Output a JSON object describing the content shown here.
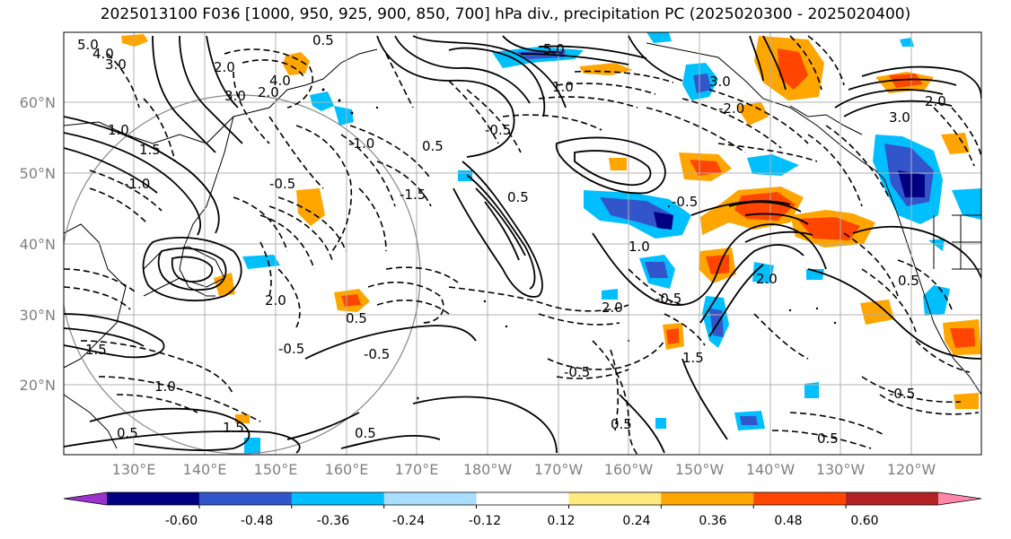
{
  "title": "2025013100 F036 [1000, 950, 925, 900, 850, 700] hPa div., precipitation PC (2025020300 - 2025020400)",
  "lat_labels": [
    "60°N",
    "50°N",
    "40°N",
    "30°N",
    "20°N"
  ],
  "lon_labels": [
    "130°E",
    "140°E",
    "150°E",
    "160°E",
    "170°E",
    "180°W",
    "170°W",
    "160°W",
    "150°W",
    "140°W",
    "130°W",
    "120°W"
  ],
  "colorbar": {
    "colors": [
      "#9933cc",
      "#000080",
      "#3355cc",
      "#00bfff",
      "#aadeff",
      "#ffffff",
      "#ffe97f",
      "#ffa500",
      "#ff4500",
      "#b22222",
      "#ff88aa"
    ],
    "tick_labels": [
      "-0.60",
      "-0.48",
      "-0.36",
      "-0.24",
      "-0.12",
      "0.12",
      "0.24",
      "0.36",
      "0.48",
      "0.60"
    ]
  },
  "contour_labels": [
    "5.0",
    "4.0",
    "3.0",
    "0.5",
    "2.0",
    "1.0",
    "-1.5",
    "-0.5",
    "1.5",
    "-1.0",
    "5.0",
    "1.0",
    "2.0",
    "3.0",
    "4.0",
    "0.5",
    "-0.5",
    "0.5",
    "-0.5",
    "-1.0",
    "1.0",
    "2.0",
    "-0.5",
    "0.5",
    "-0.5",
    "-0.5",
    "1.5",
    "0.5",
    "2.0",
    "1.0",
    "1.5",
    "-0.5",
    "0.5",
    "1.5",
    "-0.5",
    "0.5",
    "2.0",
    "3.0",
    "-2.0",
    "3.0",
    "2.0",
    "0.5",
    "0.5"
  ],
  "colors": {
    "land": "#000000",
    "grid": "#b0b0b0",
    "contour": "#000000",
    "circle": "#888888"
  }
}
